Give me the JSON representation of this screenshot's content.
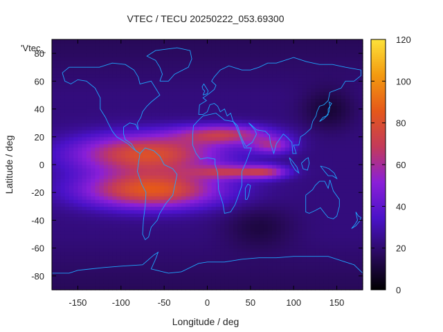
{
  "chart_data": {
    "type": "heatmap",
    "title": "VTEC / TECU 20250222_053.69300",
    "xlabel": "Longitude / deg",
    "ylabel": "Latitude / deg",
    "series_key": "'Vtec_",
    "xlim": [
      -180,
      180
    ],
    "ylim": [
      -90,
      90
    ],
    "x_ticks": [
      -150,
      -100,
      -50,
      0,
      50,
      100,
      150
    ],
    "y_ticks": [
      -80,
      -60,
      -40,
      -20,
      0,
      20,
      40,
      60,
      80
    ],
    "colorbar": {
      "min": 0,
      "max": 120,
      "ticks": [
        0,
        20,
        40,
        60,
        80,
        100,
        120
      ]
    },
    "grid": false,
    "legend": "top-left",
    "colormap_stops": [
      "#000000",
      "#2a0a5e",
      "#4a12c8",
      "#8a1fd8",
      "#c33a5a",
      "#e5581a",
      "#f39a10",
      "#fde23a"
    ],
    "coastline_color": "#1fa8ff",
    "field_model": {
      "base_vtec": 22,
      "features": [
        {
          "name": "equatorial-crest-north",
          "lon": -70,
          "lat": 8,
          "vtec": 58,
          "lon_width": 85,
          "lat_width": 14
        },
        {
          "name": "equatorial-crest-south",
          "lon": -65,
          "lat": -18,
          "vtec": 62,
          "lon_width": 80,
          "lat_width": 13
        },
        {
          "name": "atlantic-africa-north-arm",
          "lon": 20,
          "lat": 22,
          "vtec": 42,
          "lon_width": 55,
          "lat_width": 7
        },
        {
          "name": "india-arm",
          "lon": 75,
          "lat": 14,
          "vtec": 32,
          "lon_width": 25,
          "lat_width": 6
        },
        {
          "name": "africa-south-arm",
          "lon": 30,
          "lat": -5,
          "vtec": 35,
          "lon_width": 45,
          "lat_width": 5
        },
        {
          "name": "indian-ocean-arm",
          "lon": 70,
          "lat": -5,
          "vtec": 28,
          "lon_width": 25,
          "lat_width": 5
        },
        {
          "name": "midlat-depletion-asia",
          "lon": 140,
          "lat": 40,
          "vtec": -12,
          "lon_width": 30,
          "lat_width": 15
        },
        {
          "name": "south-pacific-depletion",
          "lon": 60,
          "lat": -45,
          "vtec": -10,
          "lon_width": 40,
          "lat_width": 15
        }
      ],
      "grid_step_lon": 5,
      "grid_step_lat": 2.5
    },
    "coastlines": [
      {
        "name": "north-america",
        "points": [
          [
            -168,
            66
          ],
          [
            -160,
            70
          ],
          [
            -140,
            70
          ],
          [
            -125,
            70
          ],
          [
            -110,
            73
          ],
          [
            -95,
            72
          ],
          [
            -85,
            68
          ],
          [
            -80,
            63
          ],
          [
            -78,
            58
          ],
          [
            -65,
            60
          ],
          [
            -60,
            55
          ],
          [
            -55,
            50
          ],
          [
            -65,
            45
          ],
          [
            -70,
            42
          ],
          [
            -75,
            38
          ],
          [
            -77,
            34
          ],
          [
            -81,
            30
          ],
          [
            -80,
            25
          ],
          [
            -83,
            29
          ],
          [
            -90,
            30
          ],
          [
            -97,
            27
          ],
          [
            -97,
            22
          ],
          [
            -95,
            18
          ],
          [
            -88,
            15
          ],
          [
            -83,
            10
          ],
          [
            -78,
            8
          ],
          [
            -85,
            11
          ],
          [
            -92,
            15
          ],
          [
            -105,
            20
          ],
          [
            -110,
            24
          ],
          [
            -115,
            30
          ],
          [
            -118,
            34
          ],
          [
            -124,
            40
          ],
          [
            -124,
            48
          ],
          [
            -130,
            55
          ],
          [
            -140,
            60
          ],
          [
            -150,
            61
          ],
          [
            -158,
            58
          ],
          [
            -165,
            60
          ],
          [
            -168,
            66
          ]
        ]
      },
      {
        "name": "greenland",
        "points": [
          [
            -55,
            60
          ],
          [
            -45,
            60
          ],
          [
            -38,
            65
          ],
          [
            -22,
            70
          ],
          [
            -18,
            76
          ],
          [
            -20,
            82
          ],
          [
            -35,
            84
          ],
          [
            -60,
            82
          ],
          [
            -70,
            78
          ],
          [
            -60,
            75
          ],
          [
            -55,
            70
          ],
          [
            -52,
            65
          ],
          [
            -55,
            60
          ]
        ]
      },
      {
        "name": "south-america",
        "points": [
          [
            -78,
            8
          ],
          [
            -72,
            12
          ],
          [
            -62,
            10
          ],
          [
            -55,
            6
          ],
          [
            -50,
            0
          ],
          [
            -40,
            -3
          ],
          [
            -35,
            -7
          ],
          [
            -37,
            -13
          ],
          [
            -40,
            -22
          ],
          [
            -48,
            -28
          ],
          [
            -55,
            -35
          ],
          [
            -58,
            -40
          ],
          [
            -65,
            -45
          ],
          [
            -68,
            -52
          ],
          [
            -72,
            -54
          ],
          [
            -75,
            -50
          ],
          [
            -74,
            -40
          ],
          [
            -72,
            -30
          ],
          [
            -71,
            -20
          ],
          [
            -76,
            -14
          ],
          [
            -81,
            -5
          ],
          [
            -80,
            0
          ],
          [
            -78,
            8
          ]
        ]
      },
      {
        "name": "africa",
        "points": [
          [
            -17,
            21
          ],
          [
            -16,
            28
          ],
          [
            -10,
            32
          ],
          [
            -5,
            35
          ],
          [
            10,
            37
          ],
          [
            20,
            32
          ],
          [
            30,
            31
          ],
          [
            33,
            28
          ],
          [
            38,
            20
          ],
          [
            43,
            12
          ],
          [
            51,
            12
          ],
          [
            45,
            2
          ],
          [
            40,
            -5
          ],
          [
            40,
            -15
          ],
          [
            35,
            -24
          ],
          [
            32,
            -29
          ],
          [
            27,
            -34
          ],
          [
            20,
            -35
          ],
          [
            18,
            -28
          ],
          [
            13,
            -18
          ],
          [
            12,
            -6
          ],
          [
            9,
            0
          ],
          [
            9,
            4
          ],
          [
            0,
            5
          ],
          [
            -8,
            4
          ],
          [
            -13,
            8
          ],
          [
            -17,
            14
          ],
          [
            -17,
            21
          ]
        ]
      },
      {
        "name": "eurasia",
        "points": [
          [
            -10,
            36
          ],
          [
            -9,
            43
          ],
          [
            -1,
            46
          ],
          [
            -5,
            48
          ],
          [
            2,
            51
          ],
          [
            8,
            54
          ],
          [
            10,
            57
          ],
          [
            5,
            60
          ],
          [
            8,
            63
          ],
          [
            15,
            68
          ],
          [
            25,
            71
          ],
          [
            40,
            68
          ],
          [
            50,
            68
          ],
          [
            60,
            70
          ],
          [
            70,
            73
          ],
          [
            80,
            73
          ],
          [
            100,
            77
          ],
          [
            115,
            74
          ],
          [
            130,
            72
          ],
          [
            145,
            72
          ],
          [
            160,
            70
          ],
          [
            178,
            68
          ],
          [
            178,
            64
          ],
          [
            170,
            60
          ],
          [
            160,
            60
          ],
          [
            155,
            55
          ],
          [
            142,
            52
          ],
          [
            140,
            46
          ],
          [
            135,
            43
          ],
          [
            130,
            42
          ],
          [
            127,
            38
          ],
          [
            126,
            35
          ],
          [
            122,
            31
          ],
          [
            120,
            26
          ],
          [
            113,
            22
          ],
          [
            108,
            20
          ],
          [
            106,
            14
          ],
          [
            100,
            14
          ],
          [
            103,
            8
          ],
          [
            99,
            8
          ],
          [
            98,
            16
          ],
          [
            92,
            20
          ],
          [
            88,
            22
          ],
          [
            80,
            15
          ],
          [
            77,
            8
          ],
          [
            73,
            16
          ],
          [
            72,
            21
          ],
          [
            67,
            24
          ],
          [
            57,
            25
          ],
          [
            50,
            29
          ],
          [
            48,
            30
          ],
          [
            55,
            25
          ],
          [
            57,
            22
          ],
          [
            52,
            16
          ],
          [
            45,
            13
          ],
          [
            42,
            16
          ],
          [
            38,
            22
          ],
          [
            35,
            28
          ],
          [
            30,
            31
          ],
          [
            27,
            37
          ],
          [
            23,
            35
          ],
          [
            20,
            40
          ],
          [
            15,
            38
          ],
          [
            12,
            42
          ],
          [
            8,
            44
          ],
          [
            3,
            43
          ],
          [
            0,
            38
          ],
          [
            -5,
            36
          ],
          [
            -10,
            36
          ]
        ]
      },
      {
        "name": "britain",
        "points": [
          [
            -5,
            50
          ],
          [
            0,
            51
          ],
          [
            1,
            53
          ],
          [
            -2,
            56
          ],
          [
            -4,
            58
          ],
          [
            -6,
            56
          ],
          [
            -5,
            54
          ],
          [
            -3,
            53
          ],
          [
            -5,
            50
          ]
        ]
      },
      {
        "name": "japan",
        "points": [
          [
            130,
            31
          ],
          [
            134,
            34
          ],
          [
            138,
            35
          ],
          [
            141,
            38
          ],
          [
            142,
            42
          ],
          [
            141,
            45
          ],
          [
            144,
            44
          ],
          [
            140,
            40
          ],
          [
            140,
            36
          ],
          [
            135,
            33
          ],
          [
            130,
            31
          ]
        ]
      },
      {
        "name": "madagascar",
        "points": [
          [
            44,
            -25
          ],
          [
            44,
            -17
          ],
          [
            47,
            -14
          ],
          [
            50,
            -15
          ],
          [
            48,
            -22
          ],
          [
            46,
            -25
          ],
          [
            44,
            -25
          ]
        ]
      },
      {
        "name": "australia",
        "points": [
          [
            114,
            -22
          ],
          [
            114,
            -34
          ],
          [
            118,
            -35
          ],
          [
            125,
            -33
          ],
          [
            131,
            -31
          ],
          [
            136,
            -35
          ],
          [
            140,
            -38
          ],
          [
            146,
            -39
          ],
          [
            150,
            -37
          ],
          [
            153,
            -30
          ],
          [
            153,
            -25
          ],
          [
            146,
            -19
          ],
          [
            142,
            -11
          ],
          [
            140,
            -17
          ],
          [
            136,
            -12
          ],
          [
            130,
            -12
          ],
          [
            125,
            -15
          ],
          [
            122,
            -18
          ],
          [
            114,
            -22
          ]
        ]
      },
      {
        "name": "new-zealand",
        "points": [
          [
            172,
            -34
          ],
          [
            175,
            -37
          ],
          [
            178,
            -38
          ],
          [
            176,
            -41
          ],
          [
            172,
            -44
          ],
          [
            167,
            -46
          ],
          [
            171,
            -43
          ],
          [
            174,
            -40
          ],
          [
            172,
            -34
          ]
        ]
      },
      {
        "name": "borneo",
        "points": [
          [
            109,
            1
          ],
          [
            111,
            -3
          ],
          [
            116,
            -4
          ],
          [
            118,
            1
          ],
          [
            117,
            5
          ],
          [
            114,
            4
          ],
          [
            109,
            1
          ]
        ]
      },
      {
        "name": "sumatra",
        "points": [
          [
            95,
            5
          ],
          [
            98,
            3
          ],
          [
            104,
            -2
          ],
          [
            106,
            -6
          ],
          [
            102,
            -4
          ],
          [
            97,
            1
          ],
          [
            95,
            5
          ]
        ]
      },
      {
        "name": "new-guinea",
        "points": [
          [
            131,
            -1
          ],
          [
            137,
            -2
          ],
          [
            141,
            -3
          ],
          [
            147,
            -6
          ],
          [
            150,
            -10
          ],
          [
            145,
            -8
          ],
          [
            140,
            -8
          ],
          [
            136,
            -5
          ],
          [
            131,
            -1
          ]
        ]
      },
      {
        "name": "antarctica",
        "points": [
          [
            -180,
            -78
          ],
          [
            -160,
            -78
          ],
          [
            -150,
            -76
          ],
          [
            -120,
            -74
          ],
          [
            -100,
            -73
          ],
          [
            -75,
            -72
          ],
          [
            -62,
            -65
          ],
          [
            -57,
            -63
          ],
          [
            -60,
            -68
          ],
          [
            -65,
            -75
          ],
          [
            -45,
            -78
          ],
          [
            -30,
            -77
          ],
          [
            -10,
            -71
          ],
          [
            0,
            -70
          ],
          [
            20,
            -70
          ],
          [
            40,
            -68
          ],
          [
            60,
            -67
          ],
          [
            80,
            -67
          ],
          [
            100,
            -66
          ],
          [
            120,
            -66
          ],
          [
            140,
            -66
          ],
          [
            160,
            -70
          ],
          [
            170,
            -72
          ],
          [
            180,
            -78
          ]
        ]
      }
    ]
  }
}
